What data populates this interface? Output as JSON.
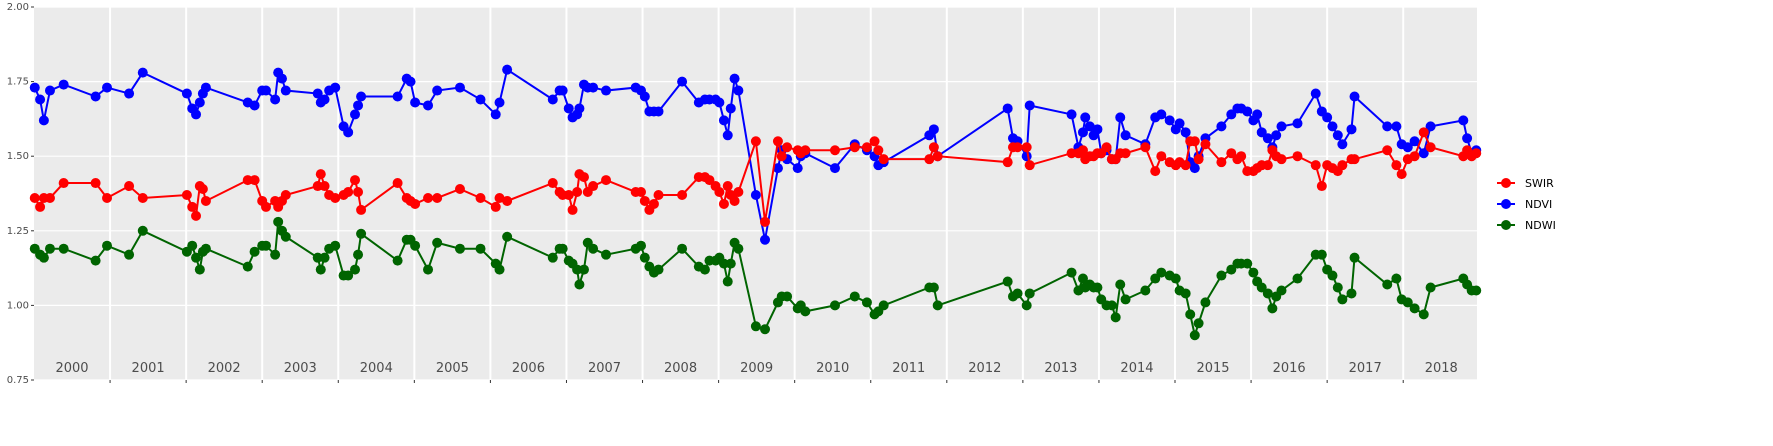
{
  "chart_data": {
    "type": "line",
    "x": [
      2000.01,
      2000.08,
      2000.13,
      2000.21,
      2000.39,
      2000.81,
      2000.96,
      2001.25,
      2001.43,
      2002.01,
      2002.08,
      2002.13,
      2002.18,
      2002.22,
      2002.26,
      2002.81,
      2002.9,
      2003.0,
      2003.05,
      2003.17,
      2003.21,
      2003.26,
      2003.31,
      2003.73,
      2003.77,
      2003.82,
      2003.88,
      2003.96,
      2004.07,
      2004.13,
      2004.22,
      2004.26,
      2004.3,
      2004.78,
      2004.9,
      2004.95,
      2005.01,
      2005.18,
      2005.3,
      2005.6,
      2005.87,
      2006.07,
      2006.12,
      2006.22,
      2006.82,
      2006.91,
      2006.95,
      2007.03,
      2007.08,
      2007.14,
      2007.17,
      2007.23,
      2007.28,
      2007.35,
      2007.52,
      2007.91,
      2007.98,
      2008.03,
      2008.09,
      2008.15,
      2008.21,
      2008.52,
      2008.74,
      2008.82,
      2008.88,
      2008.96,
      2009.01,
      2009.07,
      2009.12,
      2009.16,
      2009.21,
      2009.26,
      2009.49,
      2009.61,
      2009.78,
      2009.83,
      2009.9,
      2010.04,
      2010.08,
      2010.14,
      2010.53,
      2010.79,
      2010.95,
      2011.05,
      2011.1,
      2011.17,
      2011.77,
      2011.83,
      2011.88,
      2012.8,
      2012.87,
      2012.93,
      2013.05,
      2013.09,
      2013.64,
      2013.73,
      2013.79,
      2013.82,
      2013.88,
      2013.93,
      2013.98,
      2014.03,
      2014.1,
      2014.17,
      2014.22,
      2014.28,
      2014.35,
      2014.61,
      2014.74,
      2014.82,
      2014.93,
      2015.01,
      2015.06,
      2015.14,
      2015.2,
      2015.26,
      2015.31,
      2015.4,
      2015.61,
      2015.74,
      2015.82,
      2015.87,
      2015.95,
      2016.03,
      2016.08,
      2016.14,
      2016.22,
      2016.28,
      2016.33,
      2016.4,
      2016.61,
      2016.85,
      2016.93,
      2017.0,
      2017.07,
      2017.14,
      2017.2,
      2017.32,
      2017.36,
      2017.79,
      2017.91,
      2017.98,
      2018.06,
      2018.15,
      2018.27,
      2018.36,
      2018.79,
      2018.84,
      2018.9,
      2018.96
    ],
    "series": [
      {
        "name": "SWIR",
        "color": "#ff0000",
        "values": [
          1.36,
          1.33,
          1.36,
          1.36,
          1.41,
          1.41,
          1.36,
          1.4,
          1.36,
          1.37,
          1.33,
          1.3,
          1.4,
          1.39,
          1.35,
          1.42,
          1.42,
          1.35,
          1.33,
          1.35,
          1.33,
          1.35,
          1.37,
          1.4,
          1.44,
          1.4,
          1.37,
          1.36,
          1.37,
          1.38,
          1.42,
          1.38,
          1.32,
          1.41,
          1.36,
          1.35,
          1.34,
          1.36,
          1.36,
          1.39,
          1.36,
          1.33,
          1.36,
          1.35,
          1.41,
          1.38,
          1.37,
          1.37,
          1.32,
          1.38,
          1.44,
          1.43,
          1.38,
          1.4,
          1.42,
          1.38,
          1.38,
          1.35,
          1.32,
          1.34,
          1.37,
          1.37,
          1.43,
          1.43,
          1.42,
          1.4,
          1.38,
          1.34,
          1.4,
          1.37,
          1.35,
          1.38,
          1.55,
          1.28,
          1.55,
          1.5,
          1.53,
          1.52,
          1.51,
          1.52,
          1.52,
          1.53,
          1.53,
          1.55,
          1.52,
          1.49,
          1.49,
          1.53,
          1.5,
          1.48,
          1.53,
          1.53,
          1.53,
          1.47,
          1.51,
          1.51,
          1.52,
          1.49,
          1.5,
          1.5,
          1.51,
          1.51,
          1.53,
          1.49,
          1.49,
          1.51,
          1.51,
          1.53,
          1.45,
          1.5,
          1.48,
          1.47,
          1.48,
          1.47,
          1.55,
          1.55,
          1.49,
          1.54,
          1.48,
          1.51,
          1.49,
          1.5,
          1.45,
          1.45,
          1.46,
          1.47,
          1.47,
          1.52,
          1.5,
          1.49,
          1.5,
          1.47,
          1.4,
          1.47,
          1.46,
          1.45,
          1.47,
          1.49,
          1.49,
          1.52,
          1.47,
          1.44,
          1.49,
          1.5,
          1.58,
          1.53,
          1.5,
          1.52,
          1.5,
          1.51
        ]
      },
      {
        "name": "NDVI",
        "color": "#0000ff",
        "values": [
          1.73,
          1.69,
          1.62,
          1.72,
          1.74,
          1.7,
          1.73,
          1.71,
          1.78,
          1.71,
          1.66,
          1.64,
          1.68,
          1.71,
          1.73,
          1.68,
          1.67,
          1.72,
          1.72,
          1.69,
          1.78,
          1.76,
          1.72,
          1.71,
          1.68,
          1.69,
          1.72,
          1.73,
          1.6,
          1.58,
          1.64,
          1.67,
          1.7,
          1.7,
          1.76,
          1.75,
          1.68,
          1.67,
          1.72,
          1.73,
          1.69,
          1.64,
          1.68,
          1.79,
          1.69,
          1.72,
          1.72,
          1.66,
          1.63,
          1.64,
          1.66,
          1.74,
          1.73,
          1.73,
          1.72,
          1.73,
          1.72,
          1.7,
          1.65,
          1.65,
          1.65,
          1.75,
          1.68,
          1.69,
          1.69,
          1.69,
          1.68,
          1.62,
          1.57,
          1.66,
          1.76,
          1.72,
          1.37,
          1.22,
          1.46,
          1.52,
          1.49,
          1.46,
          1.5,
          1.51,
          1.46,
          1.54,
          1.52,
          1.5,
          1.47,
          1.48,
          1.57,
          1.59,
          1.5,
          1.66,
          1.56,
          1.55,
          1.5,
          1.67,
          1.64,
          1.53,
          1.58,
          1.63,
          1.6,
          1.57,
          1.59,
          1.51,
          1.52,
          1.49,
          1.49,
          1.63,
          1.57,
          1.54,
          1.63,
          1.64,
          1.62,
          1.59,
          1.61,
          1.58,
          1.48,
          1.46,
          1.5,
          1.56,
          1.6,
          1.64,
          1.66,
          1.66,
          1.65,
          1.62,
          1.64,
          1.58,
          1.56,
          1.53,
          1.57,
          1.6,
          1.61,
          1.71,
          1.65,
          1.63,
          1.6,
          1.57,
          1.54,
          1.59,
          1.7,
          1.6,
          1.6,
          1.54,
          1.53,
          1.55,
          1.51,
          1.6,
          1.62,
          1.56,
          1.51,
          1.52
        ]
      },
      {
        "name": "NDWI",
        "color": "#006400",
        "values": [
          1.19,
          1.17,
          1.16,
          1.19,
          1.19,
          1.15,
          1.2,
          1.17,
          1.25,
          1.18,
          1.2,
          1.16,
          1.12,
          1.18,
          1.19,
          1.13,
          1.18,
          1.2,
          1.2,
          1.17,
          1.28,
          1.25,
          1.23,
          1.16,
          1.12,
          1.16,
          1.19,
          1.2,
          1.1,
          1.1,
          1.12,
          1.17,
          1.24,
          1.15,
          1.22,
          1.22,
          1.2,
          1.12,
          1.21,
          1.19,
          1.19,
          1.14,
          1.12,
          1.23,
          1.16,
          1.19,
          1.19,
          1.15,
          1.14,
          1.12,
          1.07,
          1.12,
          1.21,
          1.19,
          1.17,
          1.19,
          1.2,
          1.16,
          1.13,
          1.11,
          1.12,
          1.19,
          1.13,
          1.12,
          1.15,
          1.15,
          1.16,
          1.14,
          1.08,
          1.14,
          1.21,
          1.19,
          0.93,
          0.92,
          1.01,
          1.03,
          1.03,
          0.99,
          1.0,
          0.98,
          1.0,
          1.03,
          1.01,
          0.97,
          0.98,
          1.0,
          1.06,
          1.06,
          1.0,
          1.08,
          1.03,
          1.04,
          1.0,
          1.04,
          1.11,
          1.05,
          1.09,
          1.06,
          1.07,
          1.06,
          1.06,
          1.02,
          1.0,
          1.0,
          0.96,
          1.07,
          1.02,
          1.05,
          1.09,
          1.11,
          1.1,
          1.09,
          1.05,
          1.04,
          0.97,
          0.9,
          0.94,
          1.01,
          1.1,
          1.12,
          1.14,
          1.14,
          1.14,
          1.11,
          1.08,
          1.06,
          1.04,
          0.99,
          1.03,
          1.05,
          1.09,
          1.17,
          1.17,
          1.12,
          1.1,
          1.06,
          1.02,
          1.04,
          1.16,
          1.07,
          1.09,
          1.02,
          1.01,
          0.99,
          0.97,
          1.06,
          1.09,
          1.07,
          1.05,
          1.05
        ]
      }
    ],
    "xlim": [
      2000,
      2018.97
    ],
    "xticks": [
      {
        "value": 2000.5,
        "label": "2000"
      },
      {
        "value": 2001.5,
        "label": "2001"
      },
      {
        "value": 2002.5,
        "label": "2002"
      },
      {
        "value": 2003.5,
        "label": "2003"
      },
      {
        "value": 2004.5,
        "label": "2004"
      },
      {
        "value": 2005.5,
        "label": "2005"
      },
      {
        "value": 2006.5,
        "label": "2006"
      },
      {
        "value": 2007.5,
        "label": "2007"
      },
      {
        "value": 2008.5,
        "label": "2008"
      },
      {
        "value": 2009.5,
        "label": "2009"
      },
      {
        "value": 2010.5,
        "label": "2010"
      },
      {
        "value": 2011.5,
        "label": "2011"
      },
      {
        "value": 2012.5,
        "label": "2012"
      },
      {
        "value": 2013.5,
        "label": "2013"
      },
      {
        "value": 2014.5,
        "label": "2014"
      },
      {
        "value": 2015.5,
        "label": "2015"
      },
      {
        "value": 2016.5,
        "label": "2016"
      },
      {
        "value": 2017.5,
        "label": "2017"
      },
      {
        "value": 2018.5,
        "label": "2018"
      }
    ],
    "x_grid": [
      2001,
      2002,
      2003,
      2004,
      2005,
      2006,
      2007,
      2008,
      2009,
      2010,
      2011,
      2012,
      2013,
      2014,
      2015,
      2016,
      2017,
      2018
    ],
    "ylim": [
      0.75,
      2.0
    ],
    "yticks": [
      {
        "value": 0.75,
        "label": "0.75"
      },
      {
        "value": 1.0,
        "label": "1.00"
      },
      {
        "value": 1.25,
        "label": "1.25"
      },
      {
        "value": 1.5,
        "label": "1.50"
      },
      {
        "value": 1.75,
        "label": "1.75"
      },
      {
        "value": 2.0,
        "label": "2.00"
      }
    ],
    "grid": true,
    "legend": "right"
  }
}
